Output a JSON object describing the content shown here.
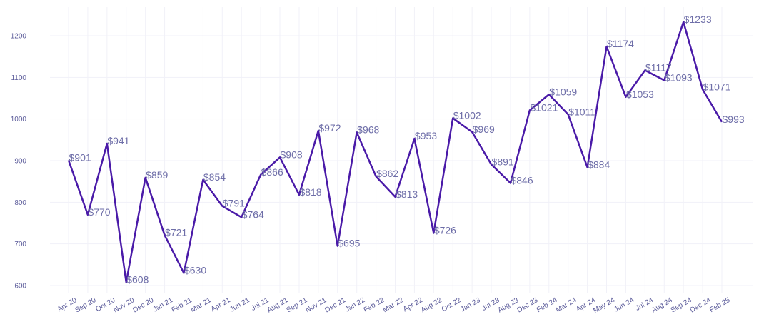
{
  "chart_data": {
    "type": "line",
    "categories": [
      "Apr 20",
      "Sep 20",
      "Oct 20",
      "Nov 20",
      "Dec 20",
      "Jan 21",
      "Feb 21",
      "Mar 21",
      "Apr 21",
      "Jun 21",
      "Jul 21",
      "Aug 21",
      "Sep 21",
      "Nov 21",
      "Dec 21",
      "Jan 22",
      "Feb 22",
      "Mar 22",
      "Apr 22",
      "Aug 22",
      "Oct 22",
      "Jan 23",
      "Jul 23",
      "Aug 23",
      "Dec 23",
      "Feb 24",
      "Mar 24",
      "Apr 24",
      "May 24",
      "Jun 24",
      "Jul 24",
      "Aug 24",
      "Sep 24",
      "Dec 24",
      "Feb 25"
    ],
    "series": [
      {
        "values": [
          901,
          770,
          941,
          608,
          859,
          721,
          630,
          854,
          791,
          764,
          866,
          908,
          818,
          972,
          695,
          968,
          862,
          813,
          953,
          726,
          1002,
          969,
          891,
          846,
          1021,
          1059,
          1011,
          884,
          1174,
          1053,
          1117,
          1093,
          1233,
          1071,
          993
        ],
        "labels": [
          "$901",
          "$770",
          "$941",
          "$608",
          "$859",
          "$721",
          "$630",
          "$854",
          "$791",
          "$764",
          "$866",
          "$908",
          "$818",
          "$972",
          "$695",
          "$968",
          "$862",
          "$813",
          "$953",
          "$726",
          "$1002",
          "$969",
          "$891",
          "$846",
          "$1021",
          "$1059",
          "$1011",
          "$884",
          "$1174",
          "$1053",
          "$1117",
          "$1093",
          "$1233",
          "$1071",
          "$993"
        ],
        "color": "#4a1aa8"
      }
    ],
    "yticks": [
      600,
      700,
      800,
      900,
      1000,
      1100,
      1200
    ],
    "ylim": [
      575,
      1265
    ],
    "title": "",
    "xlabel": "",
    "ylabel": "",
    "grid": true,
    "legend": "none"
  }
}
